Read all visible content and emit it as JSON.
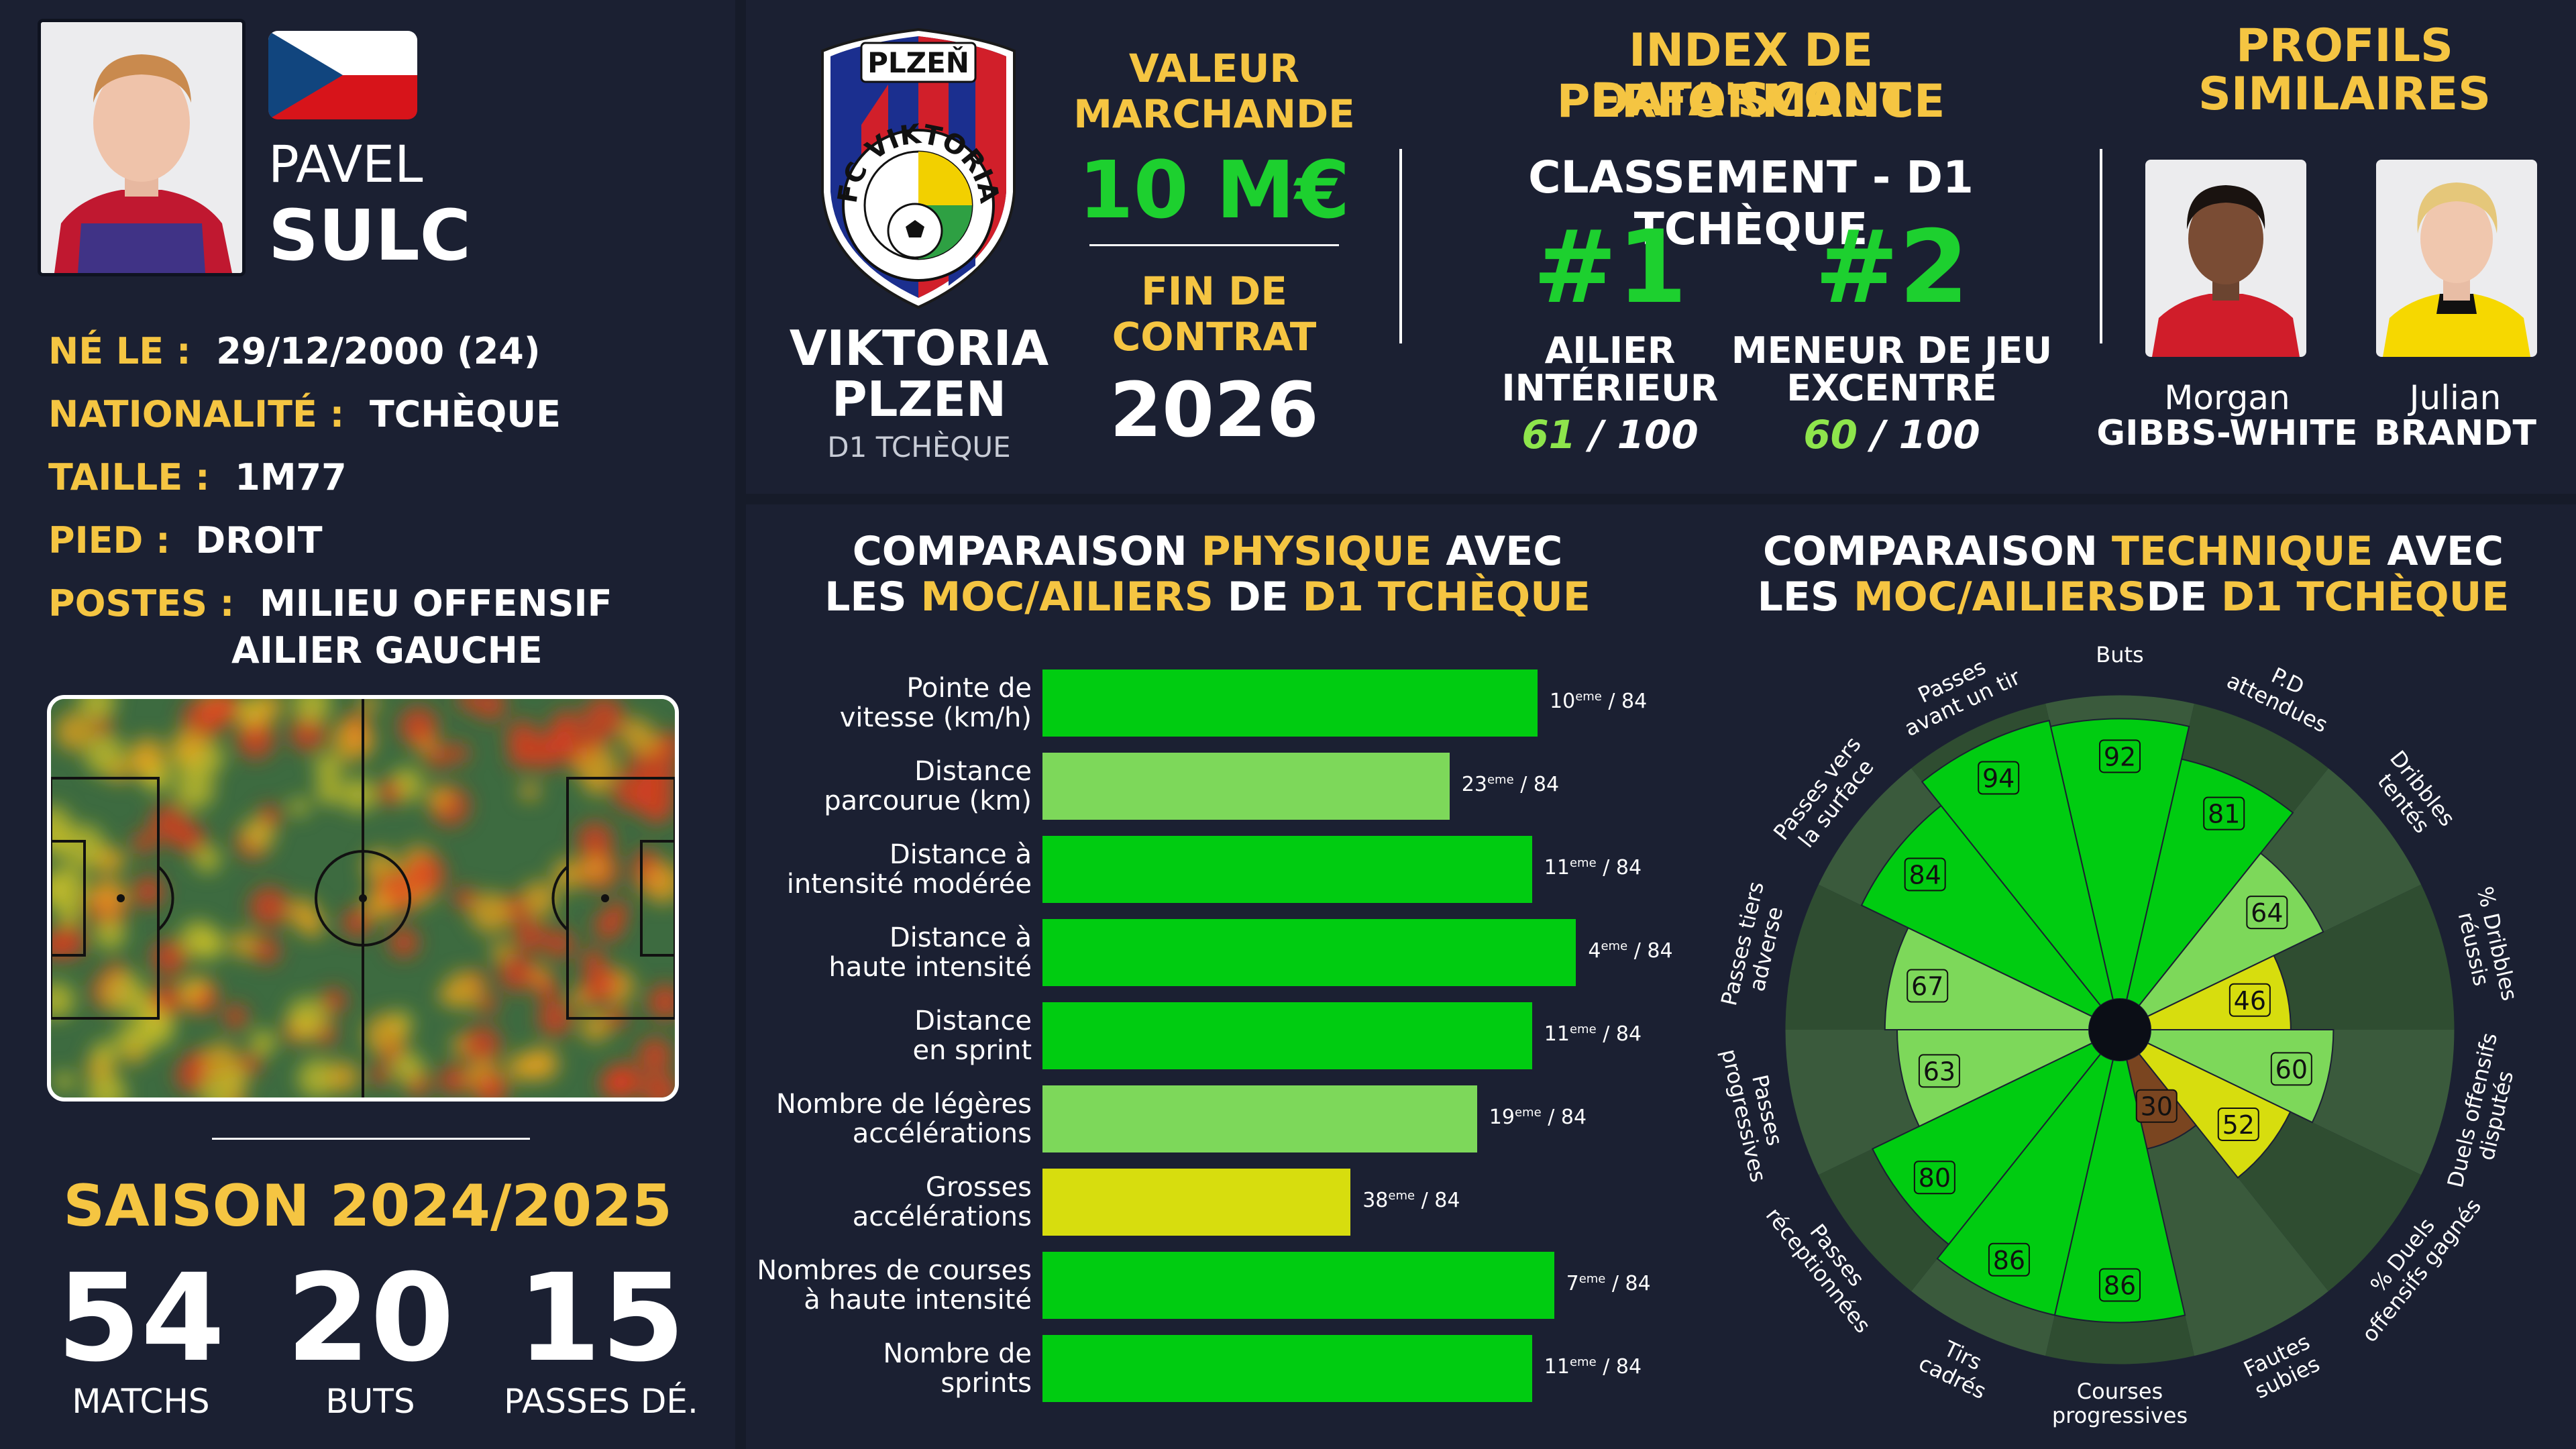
{
  "player": {
    "first_name": "PAVEL",
    "last_name": "SULC",
    "info": [
      {
        "label": "NÉ LE :",
        "value": "29/12/2000 (24)"
      },
      {
        "label": "NATIONALITÉ :",
        "value": "TCHÈQUE"
      },
      {
        "label": "TAILLE :",
        "value": "1M77"
      },
      {
        "label": "PIED :",
        "value": "DROIT"
      },
      {
        "label": "POSTES :",
        "value": "MILIEU OFFENSIF",
        "value2": "AILIER GAUCHE"
      }
    ],
    "season_title": "SAISON 2024/2025",
    "season_stats": [
      {
        "value": "54",
        "label": "MATCHS"
      },
      {
        "value": "20",
        "label": "BUTS"
      },
      {
        "value": "15",
        "label": "PASSES DÉ."
      }
    ]
  },
  "club": {
    "badge_top": "PLZEŇ",
    "badge_ring": "FC VIKTORIA",
    "name_line1": "VIKTORIA",
    "name_line2": "PLZEN",
    "league": "D1 TCHÈQUE"
  },
  "market": {
    "title_line1": "VALEUR",
    "title_line2": "MARCHANDE",
    "value": "10 M€",
    "contract_line1": "FIN DE",
    "contract_line2": "CONTRAT",
    "contract_year": "2026"
  },
  "index": {
    "title_line1": "INDEX DE PERFORMANCE",
    "title_line2": "DATA'SCOUT",
    "subtitle": "CLASSEMENT - D1 TCHÈQUE",
    "rankings": [
      {
        "rank": "#1",
        "role_line1": "AILIER",
        "role_line2": "INTÉRIEUR",
        "score": "61",
        "max": "/ 100"
      },
      {
        "rank": "#2",
        "role_line1": "MENEUR DE JEU",
        "role_line2": "EXCENTRÉ",
        "score": "60",
        "max": "/ 100"
      }
    ]
  },
  "similar": {
    "title_line1": "PROFILS",
    "title_line2": "SIMILAIRES",
    "players": [
      {
        "first": "Morgan",
        "last": "GIBBS-WHITE"
      },
      {
        "first": "Julian",
        "last": "BRANDT"
      }
    ]
  },
  "colors": {
    "gold": "#f5c542",
    "green_top": "#00cc11",
    "green_light": "#7dd85a",
    "yellow": "#d7dd0e",
    "orange": "#f57c14",
    "brown": "#7a4520",
    "background": "#161b29",
    "panel": "#1b2032"
  },
  "chart_data": [
    {
      "type": "bar",
      "orientation": "horizontal",
      "title_parts": [
        {
          "text": "COMPARAISON ",
          "gold": false
        },
        {
          "text": "PHYSIQUE",
          "gold": true
        },
        {
          "text": " AVEC",
          "gold": false
        }
      ],
      "title_parts2": [
        {
          "text": "LES ",
          "gold": false
        },
        {
          "text": "MOC/AILIERS",
          "gold": true
        },
        {
          "text": " DE ",
          "gold": false
        },
        {
          "text": "D1 TCHÈQUE",
          "gold": true
        }
      ],
      "rank_suffix": "eme",
      "total": "/ 84",
      "categories": [
        [
          "Pointe de",
          "vitesse (km/h)"
        ],
        [
          "Distance",
          "parcourue (km)"
        ],
        [
          "Distance à",
          "intensité modérée"
        ],
        [
          "Distance à",
          "haute intensité"
        ],
        [
          "Distance",
          "en sprint"
        ],
        [
          "Nombre de légères",
          "accélérations"
        ],
        [
          "Grosses",
          "accélérations"
        ],
        [
          "Nombres de courses",
          "à haute intensité"
        ],
        [
          "Nombre de",
          "sprints"
        ]
      ],
      "ranks": [
        10,
        23,
        11,
        4,
        11,
        19,
        38,
        7,
        11
      ],
      "values": [
        90,
        74,
        89,
        97,
        89,
        79,
        56,
        93,
        89
      ],
      "xlim": [
        0,
        100
      ]
    },
    {
      "type": "radar",
      "title_parts": [
        {
          "text": "COMPARAISON ",
          "gold": false
        },
        {
          "text": "TECHNIQUE",
          "gold": true
        },
        {
          "text": " AVEC",
          "gold": false
        }
      ],
      "title_parts2": [
        {
          "text": "LES ",
          "gold": false
        },
        {
          "text": "MOC/AILIERS",
          "gold": true
        },
        {
          "text": "DE ",
          "gold": false
        },
        {
          "text": "D1 TCHÈQUE",
          "gold": true
        }
      ],
      "categories": [
        [
          "Buts"
        ],
        [
          "P.D",
          "attendues"
        ],
        [
          "Dribbles",
          "tentés"
        ],
        [
          "% Dribbles",
          "réussis"
        ],
        [
          "Duels offensifs",
          "disputés"
        ],
        [
          "% Duels",
          "offensifs gagnés"
        ],
        [
          "Fautes",
          "subies"
        ],
        [
          "Courses",
          "progressives"
        ],
        [
          "Tirs",
          "cadrés"
        ],
        [
          "Passes",
          "réceptionnées"
        ],
        [
          "Passes",
          "progressives"
        ],
        [
          "Passes tiers",
          "adverse"
        ],
        [
          "Passes vers",
          "la surface"
        ],
        [
          "Passes",
          "avant un tir"
        ]
      ],
      "values": [
        92,
        81,
        64,
        46,
        60,
        52,
        30,
        86,
        86,
        80,
        63,
        67,
        84,
        94
      ],
      "rlim": [
        0,
        100
      ]
    }
  ]
}
